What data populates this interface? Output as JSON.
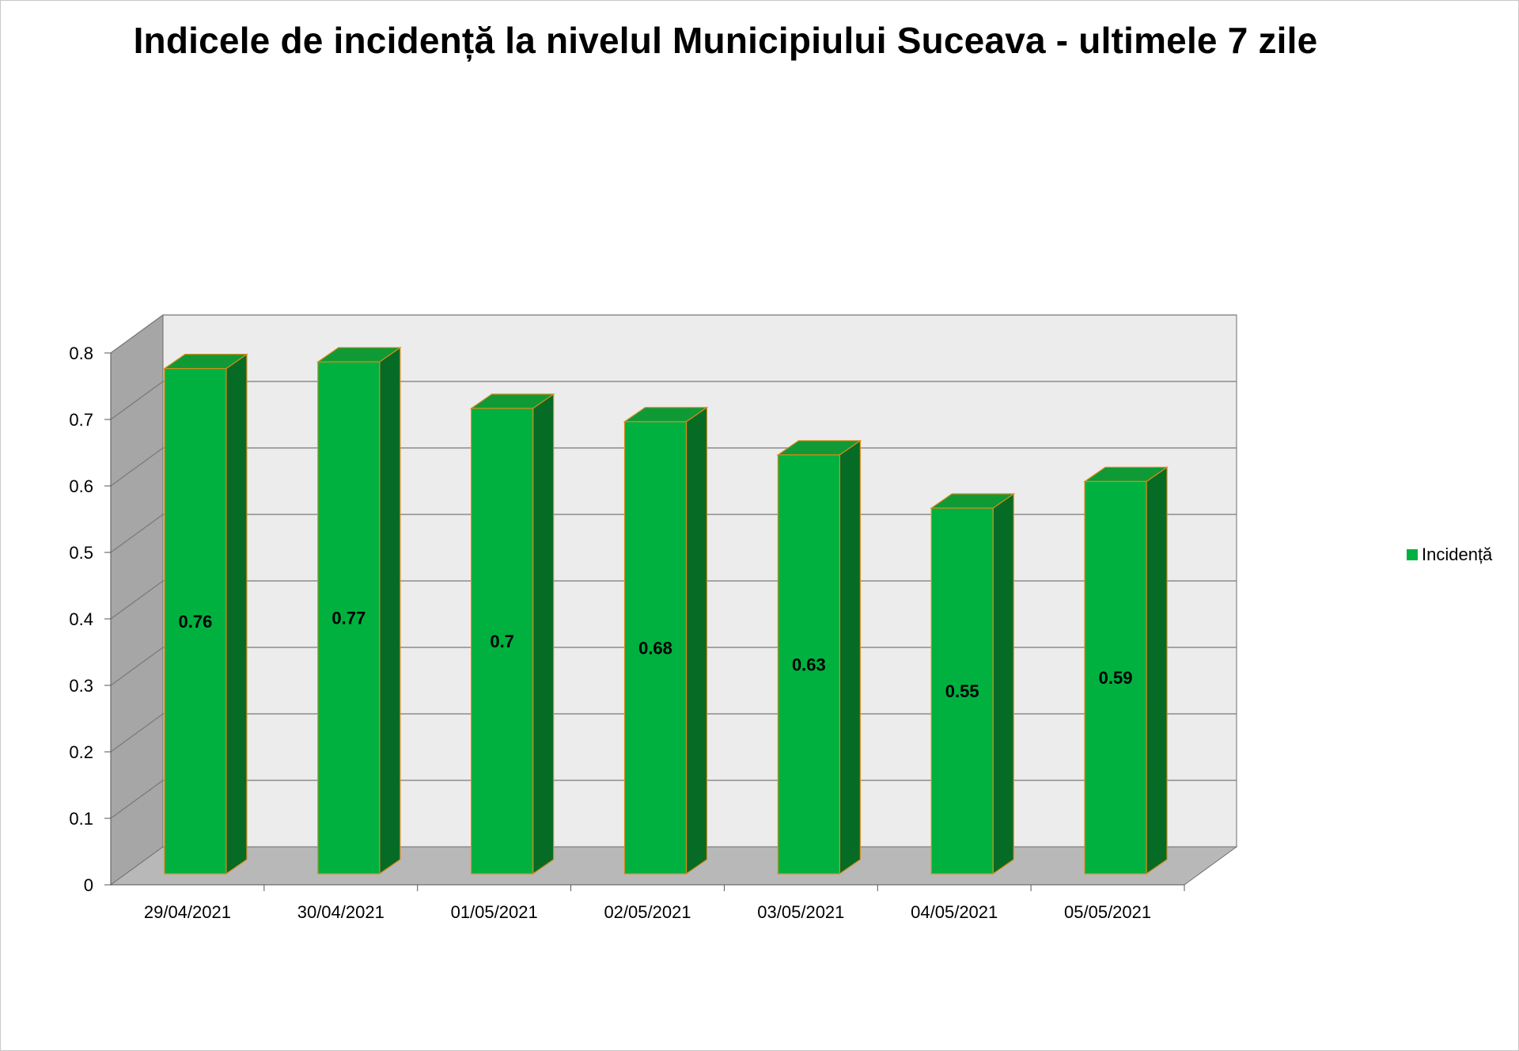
{
  "chart_data": {
    "type": "bar",
    "title": "Indicele de incidență la nivelul Municipiului Suceava - ultimele 7 zile",
    "xlabel": "",
    "ylabel": "",
    "categories": [
      "29/04/2021",
      "30/04/2021",
      "01/05/2021",
      "02/05/2021",
      "03/05/2021",
      "04/05/2021",
      "05/05/2021"
    ],
    "series": [
      {
        "name": "Incidență",
        "values": [
          0.76,
          0.77,
          0.7,
          0.68,
          0.63,
          0.55,
          0.59
        ],
        "data_labels": [
          "0.76",
          "0.77",
          "0.7",
          "0.68",
          "0.63",
          "0.55",
          "0.59"
        ]
      }
    ],
    "ylim": [
      0,
      0.8
    ],
    "yticks": [
      "0",
      "0.1",
      "0.2",
      "0.3",
      "0.4",
      "0.5",
      "0.6",
      "0.7",
      "0.8"
    ],
    "grid": true,
    "legend_position": "right",
    "style": "3d-column",
    "colors": {
      "bar_front": "#00b140",
      "bar_top": "#0f9a35",
      "bar_side": "#066b25",
      "bar_edge": "#d88a1a",
      "back_wall": "#ececec",
      "side_wall": "#a6a6a6",
      "floor": "#b8b8b8",
      "gridline": "#7a7a7a"
    }
  }
}
